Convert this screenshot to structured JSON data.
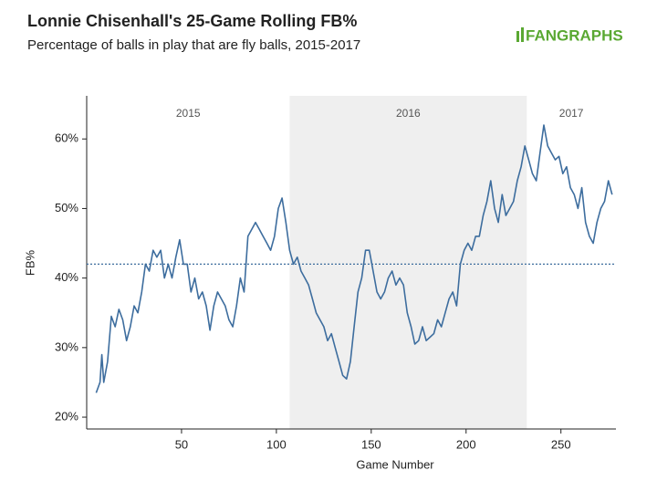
{
  "chart_data": {
    "type": "line",
    "title": "Lonnie Chisenhall's 25-Game Rolling FB%",
    "subtitle": "Percentage of balls in play that are fly balls, 2015-2017",
    "logo": "FANGRAPHS",
    "x_label": "Game Number",
    "y_label": "FB%",
    "color": "#3d6d9e",
    "x": [
      5,
      7,
      8,
      9,
      11,
      13,
      15,
      17,
      19,
      21,
      23,
      25,
      27,
      29,
      31,
      33,
      35,
      37,
      39,
      41,
      43,
      45,
      47,
      49,
      51,
      53,
      55,
      57,
      59,
      61,
      63,
      65,
      67,
      69,
      71,
      73,
      75,
      77,
      79,
      81,
      83,
      85,
      87,
      89,
      91,
      93,
      95,
      97,
      99,
      101,
      103,
      105,
      107,
      109,
      111,
      113,
      115,
      117,
      119,
      121,
      123,
      125,
      127,
      129,
      131,
      133,
      135,
      137,
      139,
      141,
      143,
      145,
      147,
      149,
      151,
      153,
      155,
      157,
      159,
      161,
      163,
      165,
      167,
      169,
      171,
      173,
      175,
      177,
      179,
      181,
      183,
      185,
      187,
      189,
      191,
      193,
      195,
      197,
      199,
      201,
      203,
      205,
      207,
      209,
      211,
      213,
      215,
      217,
      219,
      221,
      223,
      225,
      227,
      229,
      231,
      233,
      235,
      237,
      239,
      241,
      243,
      245,
      247,
      249,
      251,
      253,
      255,
      257,
      259,
      261,
      263,
      265,
      267,
      269,
      271,
      273,
      275,
      277
    ],
    "values": [
      23.5,
      25,
      29,
      25,
      28,
      34.5,
      33,
      35.5,
      34,
      31,
      33,
      36,
      35,
      38,
      42,
      41,
      44,
      43,
      44,
      40,
      42,
      40,
      43,
      45.5,
      42,
      42,
      38,
      40,
      37,
      38,
      36,
      32.5,
      36,
      38,
      37,
      36,
      34,
      33,
      36,
      40,
      38,
      46,
      47,
      48,
      47,
      46,
      45,
      44,
      46,
      50,
      51.5,
      48,
      44,
      42,
      43,
      41,
      40,
      39,
      37,
      35,
      34,
      33,
      31,
      32,
      30,
      28,
      26,
      25.5,
      28,
      33,
      38,
      40,
      44,
      44,
      41,
      38,
      37,
      38,
      40,
      41,
      39,
      40,
      39,
      35,
      33,
      30.5,
      31,
      33,
      31,
      31.5,
      32,
      34,
      33,
      35,
      37,
      38,
      36,
      42,
      44,
      45,
      44,
      46,
      46,
      49,
      51,
      54,
      50,
      48,
      52,
      49,
      50,
      51,
      54,
      56,
      59,
      57,
      55,
      54,
      58,
      62,
      59,
      58,
      57,
      57.5,
      55,
      56,
      53,
      52,
      50,
      53,
      48,
      46,
      45,
      48,
      50,
      51,
      54,
      52
    ],
    "xlim": [
      0,
      279
    ],
    "ylim": [
      18.3,
      66.2
    ],
    "xticks": [
      50,
      100,
      150,
      200,
      250
    ],
    "yticks": [
      {
        "value": 20,
        "label": "20%"
      },
      {
        "value": 30,
        "label": "30%"
      },
      {
        "value": 40,
        "label": "40%"
      },
      {
        "value": 50,
        "label": "50%"
      },
      {
        "value": 60,
        "label": "60%"
      }
    ],
    "reference_line": 42,
    "periods": [
      {
        "label": "2015",
        "start": 0,
        "end": 107,
        "shaded": false
      },
      {
        "label": "2016",
        "start": 107,
        "end": 232,
        "shaded": true
      },
      {
        "label": "2017",
        "start": 232,
        "end": 279,
        "shaded": false
      }
    ]
  }
}
